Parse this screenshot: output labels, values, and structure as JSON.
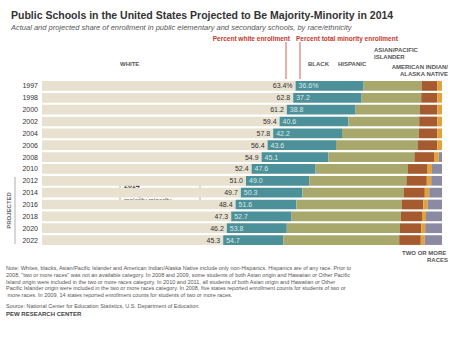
{
  "chart_data": {
    "type": "bar",
    "orientation": "horizontal",
    "stacked": true,
    "grid": false,
    "tick_labels": "y",
    "title": "Public Schools in the United States Projected to Be Majority-Minority in 2014",
    "subtitle": "Actual and projected share of enrollment in public elementary and secondary schools, by race/ethnicity",
    "categories": [
      "1997",
      "1998",
      "2000",
      "2002",
      "2004",
      "2006",
      "2008",
      "2010",
      "2012",
      "2014",
      "2016",
      "2018",
      "2020",
      "2022"
    ],
    "xlim": [
      0,
      100
    ],
    "series": [
      {
        "name": "WHITE",
        "color": "#e8e1d0",
        "data_labels": true,
        "values": [
          63.4,
          62.8,
          61.2,
          59.4,
          57.8,
          56.4,
          54.9,
          52.4,
          51.0,
          49.7,
          48.4,
          47.3,
          46.2,
          45.3
        ],
        "value_labels": [
          "63.4%",
          "62.8",
          "61.2",
          "59.4",
          "57.8",
          "56.4",
          "54.9",
          "52.4",
          "51.0",
          "49.7",
          "48.4",
          "47.3",
          "46.2",
          "45.3"
        ]
      },
      {
        "name": "BLACK",
        "color": "#4c9199",
        "values": [
          17.0,
          17.1,
          17.2,
          17.2,
          17.2,
          17.1,
          16.7,
          16.0,
          15.8,
          15.4,
          15.2,
          15.1,
          15.0,
          15.0
        ]
      },
      {
        "name": "HISPANIC",
        "color": "#a8a86c",
        "values": [
          14.5,
          14.9,
          16.1,
          17.7,
          19.2,
          20.5,
          21.5,
          23.1,
          24.3,
          25.4,
          26.4,
          27.3,
          28.3,
          29.0
        ]
      },
      {
        "name": "ASIAN/PACIFIC ISLANDER",
        "color": "#a65a2f",
        "values": [
          3.9,
          4.0,
          4.3,
          4.5,
          4.6,
          4.8,
          4.9,
          4.9,
          5.1,
          5.2,
          5.3,
          5.3,
          5.3,
          5.4
        ]
      },
      {
        "name": "AMERICAN INDIAN/ALASKA NATIVE",
        "color": "#e2a23b",
        "values": [
          1.2,
          1.2,
          1.2,
          1.2,
          1.2,
          1.2,
          1.2,
          1.1,
          1.1,
          1.1,
          1.1,
          1.0,
          1.0,
          1.0
        ]
      },
      {
        "name": "TWO OR MORE RACES",
        "color": "#8b8aa3",
        "values": [
          null,
          null,
          null,
          null,
          null,
          null,
          0.8,
          2.5,
          2.7,
          3.2,
          3.6,
          4.0,
          4.2,
          4.3
        ]
      }
    ],
    "minority_total": {
      "name": "Percent total minority enrollment",
      "values": [
        36.6,
        37.2,
        38.8,
        40.6,
        42.2,
        43.6,
        45.1,
        47.6,
        49.0,
        50.3,
        51.6,
        52.7,
        53.8,
        54.7
      ],
      "value_labels": [
        "36.6%",
        "37.2",
        "38.8",
        "40.6",
        "42.2",
        "43.6",
        "45.1",
        "47.6",
        "49.0",
        "50.3",
        "51.6",
        "52.7",
        "53.8",
        "54.7"
      ]
    },
    "annotations": {
      "white_column": "Percent white enrollment",
      "projected": "PROJECTED",
      "callout_title": "2014",
      "callout_text": "First year of majority minority"
    },
    "note": "Note: Whites, blacks, Asian/Pacific Islander and American Indian/Alaska Native include only non-Hispanics. Hispanics are of any race. Prior to 2008, \"two or more races\" was not an available category. In 2008 and 2009, some students of both Asian origin and Hawaiian or Other Pacific Island origin were included in the two or more races category. In 2010 and 2011, all students of both Asian origin and Hawaiian or Other Pacific Islander origin were included in the two or more races category. In 2008, five states reported enrollment counts for students of two or more races. In 2009, 14 states reported enrollment counts for students of two or more races.",
    "source": "Source: National Center for Education Statistics, U.S. Department of Education.",
    "credit": "PEW RESEARCH CENTER"
  }
}
